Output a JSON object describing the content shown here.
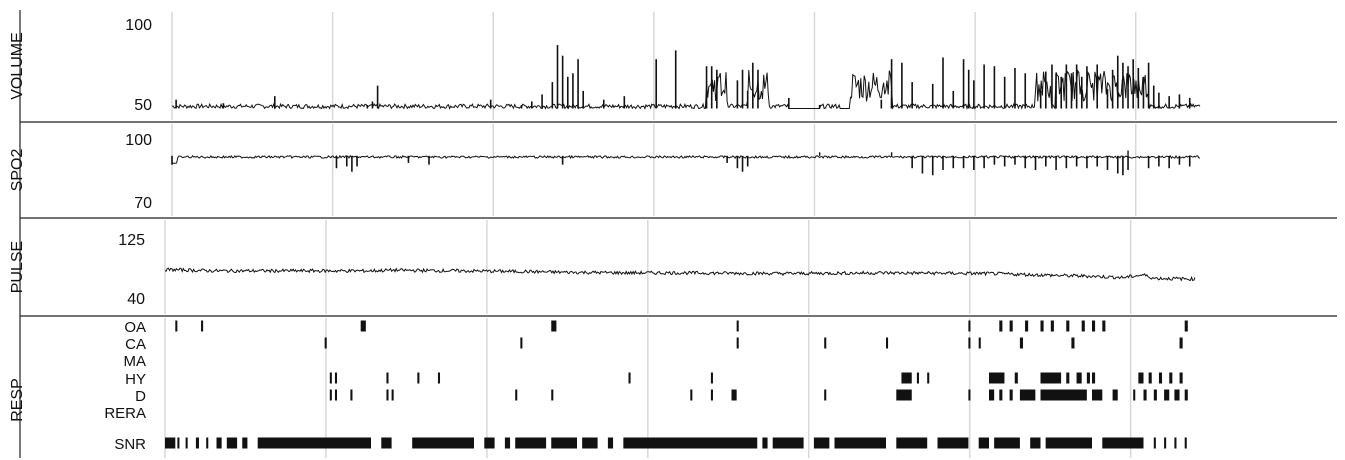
{
  "chart_data": {
    "type": "line",
    "panels": [
      {
        "name": "VOLUME",
        "ylim": [
          50,
          100
        ],
        "tick_labels": [
          "100",
          "50"
        ],
        "baseline": 52,
        "spikes": [
          [
            0.004,
            57
          ],
          [
            0.05,
            55
          ],
          [
            0.1,
            59
          ],
          [
            0.19,
            54
          ],
          [
            0.195,
            56
          ],
          [
            0.2,
            65
          ],
          [
            0.26,
            52
          ],
          [
            0.31,
            57
          ],
          [
            0.34,
            54
          ],
          [
            0.35,
            56
          ],
          [
            0.36,
            60
          ],
          [
            0.37,
            67
          ],
          [
            0.375,
            88
          ],
          [
            0.38,
            82
          ],
          [
            0.385,
            70
          ],
          [
            0.39,
            72
          ],
          [
            0.395,
            80
          ],
          [
            0.4,
            62
          ],
          [
            0.42,
            57
          ],
          [
            0.44,
            59
          ],
          [
            0.471,
            80
          ],
          [
            0.49,
            85
          ],
          [
            0.52,
            76
          ],
          [
            0.525,
            76
          ],
          [
            0.53,
            74
          ],
          [
            0.55,
            68
          ],
          [
            0.555,
            74
          ],
          [
            0.56,
            62
          ],
          [
            0.565,
            78
          ],
          [
            0.57,
            74
          ],
          [
            0.6,
            58
          ],
          [
            0.63,
            54
          ],
          [
            0.69,
            57
          ],
          [
            0.7,
            58
          ],
          [
            0.7,
            80
          ],
          [
            0.71,
            78
          ],
          [
            0.72,
            67
          ],
          [
            0.74,
            66
          ],
          [
            0.75,
            81
          ],
          [
            0.76,
            62
          ],
          [
            0.77,
            80
          ],
          [
            0.775,
            74
          ],
          [
            0.78,
            68
          ],
          [
            0.79,
            77
          ],
          [
            0.8,
            76
          ],
          [
            0.81,
            70
          ],
          [
            0.82,
            75
          ],
          [
            0.83,
            72
          ],
          [
            0.845,
            62
          ],
          [
            0.85,
            73
          ],
          [
            0.856,
            77
          ],
          [
            0.86,
            72
          ],
          [
            0.865,
            70
          ],
          [
            0.87,
            77
          ],
          [
            0.875,
            72
          ],
          [
            0.88,
            77
          ],
          [
            0.885,
            70
          ],
          [
            0.89,
            76
          ],
          [
            0.9,
            77
          ],
          [
            0.91,
            63
          ],
          [
            0.915,
            74
          ],
          [
            0.92,
            82
          ],
          [
            0.925,
            78
          ],
          [
            0.93,
            76
          ],
          [
            0.935,
            80
          ],
          [
            0.94,
            75
          ],
          [
            0.945,
            70
          ],
          [
            0.95,
            78
          ],
          [
            0.955,
            65
          ],
          [
            0.96,
            61
          ],
          [
            0.97,
            59
          ],
          [
            0.98,
            60
          ],
          [
            0.99,
            58
          ]
        ],
        "dense_regions": [
          [
            0.52,
            0.54
          ],
          [
            0.56,
            0.58
          ],
          [
            0.66,
            0.7
          ],
          [
            0.84,
            0.855
          ],
          [
            0.86,
            0.95
          ]
        ],
        "flat_regions": [
          [
            0.6,
            0.63
          ],
          [
            0.65,
            0.69
          ]
        ]
      },
      {
        "name": "SPO2",
        "ylim": [
          70,
          100
        ],
        "tick_labels": [
          "100",
          "70"
        ],
        "baseline": 95,
        "dips": [
          [
            0.0,
            90
          ],
          [
            0.16,
            88
          ],
          [
            0.17,
            89
          ],
          [
            0.175,
            86
          ],
          [
            0.18,
            89
          ],
          [
            0.23,
            91
          ],
          [
            0.25,
            90
          ],
          [
            0.38,
            90
          ],
          [
            0.54,
            91
          ],
          [
            0.55,
            88
          ],
          [
            0.555,
            86
          ],
          [
            0.56,
            89
          ],
          [
            0.72,
            88
          ],
          [
            0.73,
            85
          ],
          [
            0.74,
            84
          ],
          [
            0.75,
            87
          ],
          [
            0.76,
            88
          ],
          [
            0.77,
            88
          ],
          [
            0.78,
            87
          ],
          [
            0.79,
            88
          ],
          [
            0.8,
            90
          ],
          [
            0.81,
            89
          ],
          [
            0.82,
            90
          ],
          [
            0.83,
            88
          ],
          [
            0.84,
            87
          ],
          [
            0.85,
            89
          ],
          [
            0.86,
            87
          ],
          [
            0.87,
            88
          ],
          [
            0.88,
            89
          ],
          [
            0.89,
            88
          ],
          [
            0.9,
            89
          ],
          [
            0.91,
            87
          ],
          [
            0.92,
            85
          ],
          [
            0.925,
            84
          ],
          [
            0.93,
            87
          ],
          [
            0.95,
            88
          ],
          [
            0.96,
            89
          ],
          [
            0.97,
            88
          ],
          [
            0.98,
            90
          ],
          [
            0.99,
            89
          ]
        ],
        "spikes_up": [
          [
            0.63,
            97
          ],
          [
            0.7,
            97
          ],
          [
            0.93,
            98
          ]
        ]
      },
      {
        "name": "PULSE",
        "ylim": [
          40,
          125
        ],
        "tick_labels": [
          "125",
          "40"
        ],
        "level": [
          [
            0.0,
            81
          ],
          [
            0.05,
            79
          ],
          [
            0.2,
            79
          ],
          [
            0.22,
            80
          ],
          [
            0.35,
            78
          ],
          [
            0.38,
            77
          ],
          [
            0.45,
            76
          ],
          [
            0.5,
            76
          ],
          [
            0.6,
            75
          ],
          [
            0.7,
            76
          ],
          [
            0.8,
            75
          ],
          [
            0.87,
            72
          ],
          [
            0.9,
            71
          ],
          [
            0.93,
            69
          ],
          [
            0.95,
            73
          ],
          [
            0.96,
            68
          ],
          [
            0.99,
            67
          ]
        ],
        "noise": 2.5
      },
      {
        "name": "RESP",
        "rows": [
          "OA",
          "CA",
          "MA",
          "HY",
          "D",
          "RERA",
          "SNR"
        ],
        "events": {
          "OA": [
            [
              0.01,
              0.012
            ],
            [
              0.035,
              0.037
            ],
            [
              0.19,
              0.195
            ],
            [
              0.375,
              0.38
            ],
            [
              0.555,
              0.557
            ],
            [
              0.78,
              0.782
            ],
            [
              0.81,
              0.813
            ],
            [
              0.82,
              0.823
            ],
            [
              0.835,
              0.838
            ],
            [
              0.85,
              0.853
            ],
            [
              0.86,
              0.863
            ],
            [
              0.875,
              0.878
            ],
            [
              0.89,
              0.893
            ],
            [
              0.9,
              0.903
            ],
            [
              0.91,
              0.913
            ],
            [
              0.99,
              0.993
            ]
          ],
          "CA": [
            [
              0.155,
              0.157
            ],
            [
              0.345,
              0.347
            ],
            [
              0.555,
              0.557
            ],
            [
              0.64,
              0.642
            ],
            [
              0.7,
              0.702
            ],
            [
              0.78,
              0.782
            ],
            [
              0.79,
              0.792
            ],
            [
              0.83,
              0.833
            ],
            [
              0.88,
              0.883
            ],
            [
              0.985,
              0.988
            ]
          ],
          "MA": [],
          "HY": [
            [
              0.16,
              0.162
            ],
            [
              0.165,
              0.167
            ],
            [
              0.215,
              0.217
            ],
            [
              0.245,
              0.247
            ],
            [
              0.265,
              0.267
            ],
            [
              0.45,
              0.452
            ],
            [
              0.53,
              0.532
            ],
            [
              0.715,
              0.725
            ],
            [
              0.73,
              0.732
            ],
            [
              0.74,
              0.742
            ],
            [
              0.8,
              0.815
            ],
            [
              0.825,
              0.828
            ],
            [
              0.85,
              0.87
            ],
            [
              0.875,
              0.878
            ],
            [
              0.885,
              0.89
            ],
            [
              0.895,
              0.898
            ],
            [
              0.9,
              0.903
            ],
            [
              0.945,
              0.95
            ],
            [
              0.955,
              0.958
            ],
            [
              0.965,
              0.968
            ],
            [
              0.975,
              0.978
            ],
            [
              0.985,
              0.988
            ]
          ],
          "D": [
            [
              0.16,
              0.162
            ],
            [
              0.165,
              0.167
            ],
            [
              0.18,
              0.182
            ],
            [
              0.215,
              0.217
            ],
            [
              0.22,
              0.222
            ],
            [
              0.34,
              0.342
            ],
            [
              0.375,
              0.377
            ],
            [
              0.51,
              0.512
            ],
            [
              0.53,
              0.532
            ],
            [
              0.55,
              0.555
            ],
            [
              0.64,
              0.642
            ],
            [
              0.71,
              0.725
            ],
            [
              0.78,
              0.782
            ],
            [
              0.8,
              0.805
            ],
            [
              0.81,
              0.813
            ],
            [
              0.82,
              0.823
            ],
            [
              0.83,
              0.845
            ],
            [
              0.85,
              0.895
            ],
            [
              0.9,
              0.91
            ],
            [
              0.92,
              0.925
            ],
            [
              0.94,
              0.942
            ],
            [
              0.95,
              0.953
            ],
            [
              0.96,
              0.963
            ],
            [
              0.97,
              0.975
            ],
            [
              0.98,
              0.985
            ],
            [
              0.99,
              0.993
            ]
          ],
          "RERA": [],
          "SNR": [
            [
              0.0,
              0.01
            ],
            [
              0.012,
              0.014
            ],
            [
              0.02,
              0.022
            ],
            [
              0.03,
              0.033
            ],
            [
              0.04,
              0.042
            ],
            [
              0.05,
              0.055
            ],
            [
              0.06,
              0.07
            ],
            [
              0.075,
              0.08
            ],
            [
              0.09,
              0.2
            ],
            [
              0.21,
              0.22
            ],
            [
              0.24,
              0.3
            ],
            [
              0.31,
              0.32
            ],
            [
              0.33,
              0.335
            ],
            [
              0.34,
              0.37
            ],
            [
              0.375,
              0.4
            ],
            [
              0.405,
              0.42
            ],
            [
              0.43,
              0.435
            ],
            [
              0.445,
              0.575
            ],
            [
              0.58,
              0.585
            ],
            [
              0.59,
              0.62
            ],
            [
              0.63,
              0.645
            ],
            [
              0.65,
              0.7
            ],
            [
              0.71,
              0.74
            ],
            [
              0.75,
              0.78
            ],
            [
              0.79,
              0.8
            ],
            [
              0.805,
              0.83
            ],
            [
              0.84,
              0.85
            ],
            [
              0.855,
              0.9
            ],
            [
              0.91,
              0.95
            ],
            [
              0.96,
              0.962
            ],
            [
              0.97,
              0.972
            ],
            [
              0.98,
              0.982
            ],
            [
              0.99,
              0.992
            ]
          ]
        }
      }
    ]
  }
}
